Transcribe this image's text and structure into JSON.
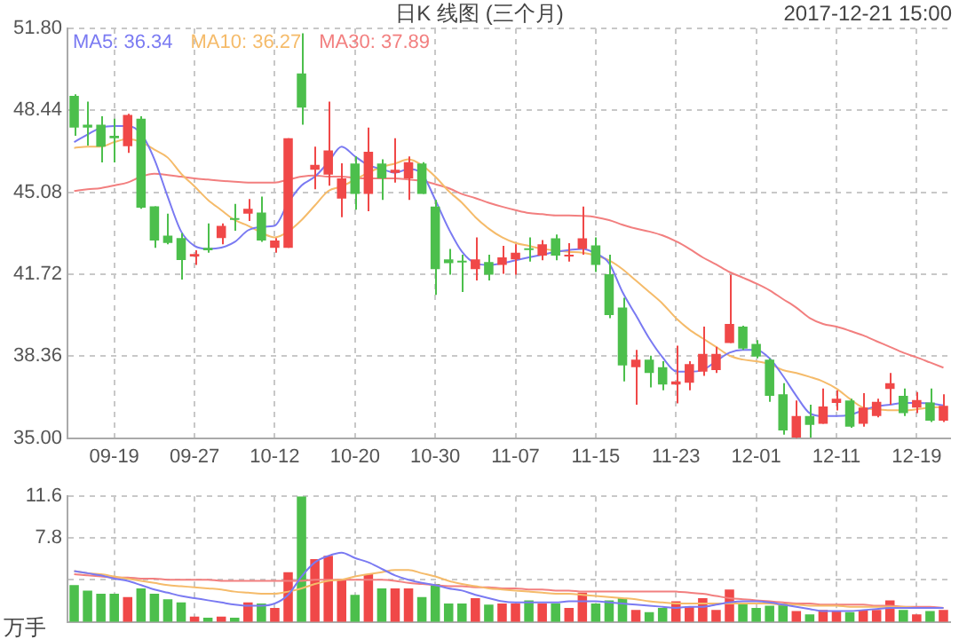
{
  "chart_data": [
    {
      "type": "candlestick",
      "title": "日K 线图 (三个月)",
      "annotations": [
        "2017-12-21 15:00"
      ],
      "categories": [
        null,
        null,
        null,
        "09-19",
        null,
        null,
        null,
        null,
        null,
        "09-27",
        null,
        null,
        null,
        null,
        null,
        "10-12",
        null,
        null,
        null,
        null,
        null,
        "10-20",
        null,
        null,
        null,
        null,
        null,
        "10-30",
        null,
        null,
        null,
        null,
        null,
        "11-07",
        null,
        null,
        null,
        null,
        null,
        "11-15",
        null,
        null,
        null,
        null,
        null,
        "11-23",
        null,
        null,
        null,
        null,
        null,
        "12-01",
        null,
        null,
        null,
        null,
        null,
        "12-11",
        null,
        null,
        null,
        null,
        null,
        "12-19",
        null,
        null
      ],
      "ohlc": [
        [
          49.03,
          49.1,
          47.4,
          47.73
        ],
        [
          47.85,
          48.8,
          47.0,
          47.73
        ],
        [
          47.85,
          48.2,
          46.3,
          46.95
        ],
        [
          47.4,
          48.1,
          46.3,
          47.3
        ],
        [
          46.97,
          48.3,
          46.7,
          48.25
        ],
        [
          48.1,
          48.2,
          44.4,
          44.45
        ],
        [
          44.5,
          44.5,
          42.8,
          43.1
        ],
        [
          43.3,
          44.2,
          42.95,
          43.0
        ],
        [
          43.2,
          43.4,
          41.5,
          42.3
        ],
        [
          42.45,
          42.7,
          42.1,
          42.55
        ],
        [
          42.8,
          43.8,
          42.6,
          42.7
        ],
        [
          43.2,
          43.8,
          42.95,
          43.7
        ],
        [
          44.0,
          44.6,
          43.5,
          43.95
        ],
        [
          44.2,
          44.8,
          43.9,
          44.4
        ],
        [
          44.25,
          44.9,
          43.05,
          43.1
        ],
        [
          42.8,
          43.2,
          42.6,
          43.1
        ],
        [
          42.8,
          47.3,
          42.8,
          47.3
        ],
        [
          49.95,
          51.6,
          47.85,
          48.55
        ],
        [
          46.0,
          46.95,
          45.2,
          46.2
        ],
        [
          45.8,
          48.8,
          45.35,
          46.8
        ],
        [
          44.82,
          46.27,
          44.06,
          45.65
        ],
        [
          46.26,
          46.55,
          44.37,
          45.01
        ],
        [
          45.01,
          47.73,
          44.3,
          46.74
        ],
        [
          46.26,
          46.43,
          44.77,
          45.65
        ],
        [
          45.88,
          47.3,
          45.48,
          46.0
        ],
        [
          45.65,
          46.55,
          44.77,
          46.31
        ],
        [
          46.26,
          46.31,
          45.01,
          45.01
        ],
        [
          44.49,
          44.77,
          40.87,
          41.93
        ],
        [
          42.33,
          42.76,
          41.7,
          42.17
        ],
        [
          42.26,
          42.52,
          40.99,
          42.2
        ],
        [
          41.93,
          43.23,
          41.46,
          42.33
        ],
        [
          42.22,
          42.52,
          41.46,
          41.7
        ],
        [
          42.1,
          42.88,
          41.74,
          42.41
        ],
        [
          42.33,
          42.95,
          41.7,
          42.6
        ],
        [
          42.76,
          43.23,
          42.24,
          42.71
        ],
        [
          42.48,
          43.12,
          42.29,
          42.95
        ],
        [
          43.19,
          43.35,
          42.29,
          42.48
        ],
        [
          42.45,
          42.99,
          42.24,
          42.52
        ],
        [
          42.76,
          44.49,
          42.52,
          43.19
        ],
        [
          42.9,
          43.23,
          41.81,
          42.1
        ],
        [
          41.72,
          42.52,
          39.92,
          40.04
        ],
        [
          40.35,
          40.75,
          37.32,
          37.98
        ],
        [
          37.91,
          38.62,
          36.37,
          38.22
        ],
        [
          38.22,
          38.38,
          37.08,
          37.67
        ],
        [
          37.91,
          38.15,
          36.96,
          37.2
        ],
        [
          37.2,
          38.79,
          36.42,
          37.32
        ],
        [
          37.27,
          38.15,
          36.96,
          38.03
        ],
        [
          37.72,
          39.57,
          37.55,
          38.45
        ],
        [
          37.79,
          38.74,
          37.67,
          38.45
        ],
        [
          38.9,
          41.7,
          38.9,
          39.68
        ],
        [
          39.57,
          39.61,
          38.62,
          38.67
        ],
        [
          38.86,
          39.02,
          38.27,
          38.34
        ],
        [
          38.22,
          38.27,
          36.49,
          36.73
        ],
        [
          36.8,
          37.25,
          35.14,
          35.31
        ],
        [
          35.02,
          36.54,
          35.0,
          35.9
        ],
        [
          35.9,
          36.37,
          35.02,
          35.54
        ],
        [
          35.59,
          37.03,
          35.59,
          36.3
        ],
        [
          36.44,
          36.96,
          36.13,
          36.61
        ],
        [
          36.54,
          36.61,
          35.42,
          35.47
        ],
        [
          35.59,
          36.84,
          35.47,
          36.25
        ],
        [
          35.9,
          36.61,
          35.85,
          36.49
        ],
        [
          37.01,
          37.67,
          36.37,
          37.25
        ],
        [
          36.73,
          37.03,
          35.9,
          36.02
        ],
        [
          36.25,
          36.89,
          36.02,
          36.56
        ],
        [
          36.46,
          37.03,
          35.66,
          35.71
        ],
        [
          35.71,
          36.8,
          35.66,
          36.32
        ]
      ],
      "colors": [
        "#4cbf4c",
        "#4cbf4c",
        "#4cbf4c",
        "#4cbf4c",
        "#f04848",
        "#4cbf4c",
        "#4cbf4c",
        "#4cbf4c",
        "#4cbf4c",
        "#f04848",
        "#4cbf4c",
        "#f04848",
        "#4cbf4c",
        "#f04848",
        "#4cbf4c",
        "#f04848",
        "#f04848",
        "#4cbf4c",
        "#f04848",
        "#f04848",
        "#f04848",
        "#4cbf4c",
        "#f04848",
        "#4cbf4c",
        "#f04848",
        "#f04848",
        "#4cbf4c",
        "#4cbf4c",
        "#4cbf4c",
        "#4cbf4c",
        "#f04848",
        "#4cbf4c",
        "#f04848",
        "#f04848",
        "#4cbf4c",
        "#f04848",
        "#4cbf4c",
        "#f04848",
        "#f04848",
        "#4cbf4c",
        "#4cbf4c",
        "#4cbf4c",
        "#f04848",
        "#4cbf4c",
        "#4cbf4c",
        "#f04848",
        "#f04848",
        "#f04848",
        "#f04848",
        "#f04848",
        "#4cbf4c",
        "#4cbf4c",
        "#4cbf4c",
        "#4cbf4c",
        "#f04848",
        "#4cbf4c",
        "#f04848",
        "#f04848",
        "#4cbf4c",
        "#f04848",
        "#f04848",
        "#f04848",
        "#4cbf4c",
        "#f04848",
        "#4cbf4c",
        "#f04848"
      ],
      "series": [
        {
          "name": "MA5: 36.34",
          "type": "line",
          "color": "#7a7af2",
          "values": [
            47.14,
            47.45,
            47.73,
            47.8,
            47.8,
            47.49,
            46.43,
            44.89,
            43.47,
            42.88,
            42.76,
            42.81,
            43.04,
            43.52,
            43.66,
            43.71,
            44.65,
            45.36,
            45.72,
            46.31,
            46.95,
            46.55,
            46.19,
            46.03,
            45.88,
            46.03,
            45.84,
            44.77,
            43.59,
            42.64,
            42.17,
            42.1,
            42.17,
            42.29,
            42.41,
            42.52,
            42.64,
            42.71,
            42.76,
            42.57,
            42.17,
            40.99,
            40.04,
            39.09,
            38.31,
            37.74,
            37.72,
            37.79,
            38.15,
            38.5,
            38.62,
            38.62,
            38.27,
            37.55,
            36.73,
            36.02,
            35.9,
            35.9,
            35.95,
            36.14,
            36.3,
            36.37,
            36.44,
            36.44,
            36.42,
            36.34
          ]
        },
        {
          "name": "MA10: 36.27",
          "type": "line",
          "color": "#f5bb6a",
          "values": [
            46.9,
            46.95,
            46.95,
            47.14,
            47.26,
            47.14,
            46.83,
            46.5,
            45.84,
            45.32,
            44.77,
            44.35,
            43.94,
            43.71,
            43.42,
            43.23,
            43.47,
            43.94,
            44.54,
            45.13,
            45.32,
            45.6,
            45.88,
            46.12,
            46.26,
            46.43,
            46.19,
            45.72,
            45.13,
            44.65,
            44.06,
            43.59,
            43.23,
            43.0,
            42.88,
            42.76,
            42.69,
            42.64,
            42.6,
            42.48,
            42.29,
            41.93,
            41.46,
            40.99,
            40.51,
            39.92,
            39.45,
            39.09,
            38.74,
            38.38,
            38.22,
            38.15,
            38.03,
            37.79,
            37.67,
            37.51,
            37.32,
            37.03,
            36.61,
            36.25,
            36.18,
            36.14,
            36.14,
            36.18,
            36.25,
            36.27
          ]
        },
        {
          "name": "MA30: 37.89",
          "type": "line",
          "color": "#f27f7f",
          "values": [
            45.13,
            45.2,
            45.25,
            45.36,
            45.48,
            45.72,
            45.84,
            45.79,
            45.72,
            45.65,
            45.6,
            45.55,
            45.51,
            45.48,
            45.48,
            45.48,
            45.6,
            45.72,
            45.77,
            45.72,
            45.72,
            45.67,
            45.65,
            45.65,
            45.65,
            45.6,
            45.55,
            45.41,
            45.25,
            45.01,
            44.84,
            44.65,
            44.49,
            44.35,
            44.23,
            44.18,
            44.13,
            44.13,
            44.11,
            44.06,
            43.94,
            43.75,
            43.59,
            43.47,
            43.31,
            43.07,
            42.76,
            42.41,
            42.12,
            41.81,
            41.58,
            41.34,
            41.06,
            40.7,
            40.35,
            39.92,
            39.68,
            39.57,
            39.4,
            39.21,
            38.97,
            38.74,
            38.5,
            38.31,
            38.1,
            37.89
          ]
        }
      ],
      "ylim": [
        35,
        51.8
      ],
      "yticks": [
        {
          "value": 35,
          "label": "35.00"
        },
        38.36,
        41.72,
        45.08,
        48.44,
        {
          "value": 51.8,
          "label": "51.80"
        }
      ],
      "grid": true,
      "legend": "top left"
    },
    {
      "type": "bar",
      "ylabel": "万手",
      "tick_labels": "y",
      "categories": [
        null,
        null,
        null,
        null,
        null,
        null,
        null,
        null,
        null,
        null,
        null,
        null,
        null,
        null,
        null,
        null,
        null,
        null,
        null,
        null,
        null,
        null,
        null,
        null,
        null,
        null,
        null,
        null,
        null,
        null,
        null,
        null,
        null,
        null,
        null,
        null,
        null,
        null,
        null,
        null,
        null,
        null,
        null,
        null,
        null,
        null,
        null,
        null,
        null,
        null,
        null,
        null,
        null,
        null,
        null,
        null,
        null,
        null,
        null,
        null,
        null,
        null,
        null,
        null,
        null,
        null
      ],
      "series": [
        {
          "type": "bar",
          "values": [
            3.4,
            2.9,
            2.6,
            2.6,
            2.3,
            3.1,
            2.6,
            2.1,
            1.8,
            0.5,
            0.4,
            0.5,
            0.4,
            1.8,
            1.7,
            1.3,
            4.6,
            11.6,
            5.8,
            6.1,
            4.0,
            2.5,
            4.4,
            3.1,
            3.1,
            3.1,
            2.3,
            3.5,
            1.7,
            1.7,
            2.2,
            1.6,
            1.7,
            1.7,
            2.0,
            1.7,
            1.7,
            1.3,
            2.7,
            1.7,
            2.0,
            2.2,
            1.1,
            0.9,
            1.3,
            1.9,
            1.4,
            2.2,
            1.1,
            3.0,
            1.7,
            1.3,
            1.5,
            1.7,
            1.0,
            0.7,
            1.1,
            1.0,
            0.9,
            1.1,
            1.1,
            2.0,
            1.1,
            0.7,
            1.0,
            1.1
          ],
          "colors": [
            "#4cbf4c",
            "#4cbf4c",
            "#4cbf4c",
            "#4cbf4c",
            "#f04848",
            "#4cbf4c",
            "#4cbf4c",
            "#4cbf4c",
            "#4cbf4c",
            "#f04848",
            "#4cbf4c",
            "#f04848",
            "#4cbf4c",
            "#f04848",
            "#4cbf4c",
            "#f04848",
            "#f04848",
            "#4cbf4c",
            "#f04848",
            "#f04848",
            "#f04848",
            "#4cbf4c",
            "#f04848",
            "#4cbf4c",
            "#f04848",
            "#f04848",
            "#4cbf4c",
            "#4cbf4c",
            "#4cbf4c",
            "#4cbf4c",
            "#f04848",
            "#4cbf4c",
            "#f04848",
            "#f04848",
            "#4cbf4c",
            "#f04848",
            "#4cbf4c",
            "#f04848",
            "#f04848",
            "#4cbf4c",
            "#4cbf4c",
            "#4cbf4c",
            "#f04848",
            "#4cbf4c",
            "#4cbf4c",
            "#f04848",
            "#f04848",
            "#f04848",
            "#f04848",
            "#f04848",
            "#4cbf4c",
            "#4cbf4c",
            "#4cbf4c",
            "#4cbf4c",
            "#f04848",
            "#4cbf4c",
            "#f04848",
            "#f04848",
            "#4cbf4c",
            "#f04848",
            "#f04848",
            "#f04848",
            "#4cbf4c",
            "#f04848",
            "#4cbf4c",
            "#f04848"
          ]
        },
        {
          "type": "line",
          "color": "#7a7af2",
          "values": [
            4.7,
            4.5,
            4.3,
            4.0,
            3.8,
            3.4,
            3.0,
            2.7,
            2.4,
            2.2,
            2.0,
            1.8,
            1.6,
            1.5,
            1.5,
            1.7,
            2.5,
            4.2,
            5.5,
            6.1,
            6.4,
            5.9,
            5.5,
            4.9,
            4.3,
            3.9,
            3.6,
            3.4,
            3.1,
            2.9,
            2.5,
            2.2,
            1.9,
            1.8,
            1.8,
            1.8,
            1.8,
            1.9,
            1.9,
            1.9,
            1.8,
            1.7,
            1.6,
            1.5,
            1.4,
            1.3,
            1.4,
            1.4,
            1.6,
            1.8,
            1.9,
            1.9,
            1.8,
            1.6,
            1.4,
            1.2,
            1.0,
            1.0,
            1.0,
            1.1,
            1.2,
            1.3,
            1.3,
            1.3,
            1.3,
            1.3
          ]
        },
        {
          "type": "line",
          "color": "#f5bb6a",
          "values": [
            4.7,
            4.5,
            4.4,
            4.2,
            4.0,
            3.8,
            3.6,
            3.4,
            3.3,
            3.2,
            3.1,
            3.0,
            2.8,
            2.7,
            2.6,
            2.6,
            2.8,
            3.1,
            3.5,
            3.8,
            3.9,
            4.2,
            4.4,
            4.6,
            4.8,
            4.8,
            4.5,
            4.2,
            3.8,
            3.5,
            3.3,
            3.1,
            3.0,
            2.9,
            2.8,
            2.7,
            2.6,
            2.6,
            2.5,
            2.4,
            2.3,
            2.2,
            2.1,
            1.9,
            1.8,
            1.7,
            1.7,
            1.7,
            1.7,
            1.7,
            1.7,
            1.7,
            1.7,
            1.6,
            1.6,
            1.5,
            1.5,
            1.5,
            1.4,
            1.4,
            1.4,
            1.4,
            1.4,
            1.3,
            1.3,
            1.3
          ]
        },
        {
          "type": "line",
          "color": "#f27f7f",
          "values": [
            4.4,
            4.3,
            4.2,
            4.1,
            4.1,
            4.0,
            4.0,
            3.9,
            3.9,
            3.9,
            3.9,
            3.8,
            3.8,
            3.8,
            3.8,
            3.8,
            3.8,
            3.8,
            3.9,
            3.9,
            3.9,
            3.9,
            3.9,
            3.9,
            3.8,
            3.6,
            3.5,
            3.4,
            3.3,
            3.3,
            3.2,
            3.2,
            3.1,
            3.1,
            3.0,
            3.0,
            2.9,
            2.9,
            2.8,
            2.8,
            2.8,
            2.8,
            2.8,
            2.8,
            2.8,
            2.8,
            2.7,
            2.6,
            2.4,
            2.2,
            2.1,
            2.0,
            1.9,
            1.8,
            1.7,
            1.7,
            1.6,
            1.6,
            1.6,
            1.6,
            1.5,
            1.5,
            1.4,
            1.4,
            1.4,
            1.3
          ]
        }
      ],
      "ylim": [
        0,
        11.6
      ],
      "yticks": [
        {
          "value": 3.9,
          "label": null
        },
        7.8,
        11.6
      ],
      "grid": true
    }
  ]
}
